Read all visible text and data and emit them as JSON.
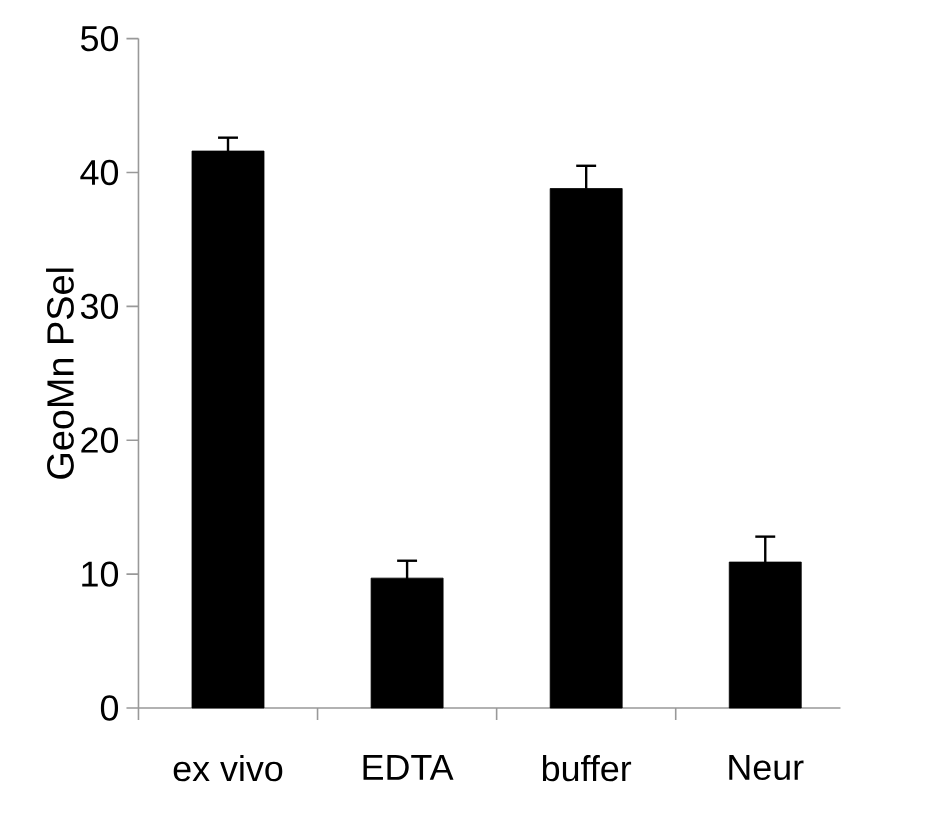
{
  "chart_data": {
    "type": "bar",
    "ylabel": "GeoMn PSel",
    "categories": [
      "ex vivo",
      "EDTA",
      "buffer",
      "Neur"
    ],
    "values": [
      41.6,
      9.7,
      38.8,
      10.9
    ],
    "errors": [
      1.0,
      1.3,
      1.7,
      1.9
    ],
    "color": "#000000",
    "ylim": [
      0,
      50
    ],
    "yticks": [
      0,
      10,
      20,
      30,
      40,
      50
    ]
  }
}
